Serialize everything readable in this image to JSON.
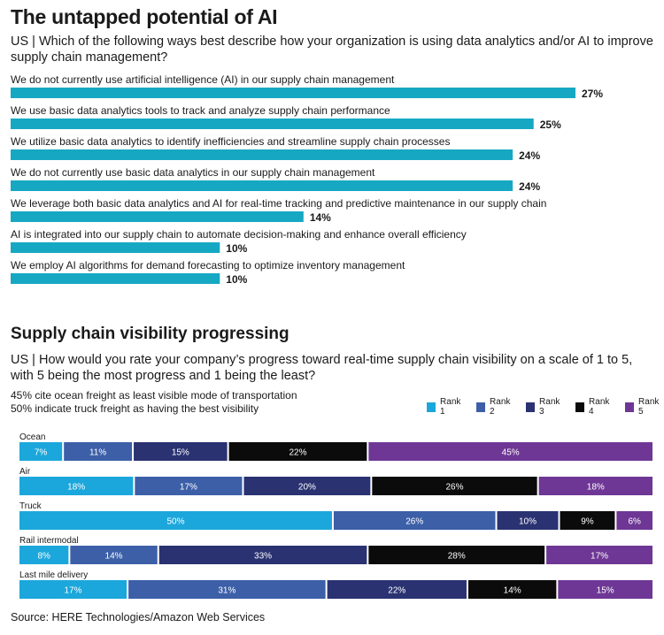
{
  "section1": {
    "title": "The untapped potential of AI",
    "question": "US | Which of the following ways best describe how your organization is using data analytics and/or AI to improve supply chain management?"
  },
  "section2": {
    "title": "Supply chain visibility progressing",
    "question": "US | How would you rate your company’s progress toward real-time supply chain visibility on a scale of 1 to 5, with 5 being the most progress and 1 being the least?",
    "note1": "45% cite ocean freight as least visible mode of transportation",
    "note2": "50% indicate truck freight as having the best visibility"
  },
  "source": "Source: HERE Technologies/Amazon Web Services",
  "colors": {
    "bar": "#16a8c3",
    "ranks": [
      "#1ba7db",
      "#3c5fa8",
      "#2a3272",
      "#0b0b0b",
      "#6e3795"
    ]
  },
  "chart_data": [
    {
      "type": "bar",
      "orientation": "horizontal",
      "title": "The untapped potential of AI",
      "categories": [
        "We do not currently use artificial intelligence (AI) in our supply chain management",
        "We use basic data analytics tools to track and analyze supply chain performance",
        "We utilize basic data analytics to identify inefficiencies and streamline supply chain processes",
        "We do not currently use basic data analytics in our supply chain management",
        "We leverage both basic data analytics and AI for real-time tracking and predictive maintenance in our supply chain",
        "AI is integrated into our supply chain to automate decision-making and enhance overall efficiency",
        "We employ AI algorithms for demand forecasting to optimize inventory management"
      ],
      "values": [
        27,
        25,
        24,
        24,
        14,
        10,
        10
      ],
      "value_labels": [
        "27%",
        "25%",
        "24%",
        "24%",
        "14%",
        "10%",
        "10%"
      ],
      "unit": "%",
      "xlim": [
        0,
        27
      ]
    },
    {
      "type": "bar",
      "orientation": "horizontal",
      "stacked": true,
      "title": "Supply chain visibility progressing",
      "categories": [
        "Ocean",
        "Air",
        "Truck",
        "Rail intermodal",
        "Last mile delivery"
      ],
      "series": [
        {
          "name": "Rank 1",
          "values": [
            7,
            18,
            50,
            8,
            17
          ]
        },
        {
          "name": "Rank 2",
          "values": [
            11,
            17,
            26,
            14,
            31
          ]
        },
        {
          "name": "Rank 3",
          "values": [
            15,
            20,
            10,
            33,
            22
          ]
        },
        {
          "name": "Rank 4",
          "values": [
            22,
            26,
            9,
            28,
            14
          ]
        },
        {
          "name": "Rank 5",
          "values": [
            45,
            18,
            6,
            17,
            15
          ]
        }
      ],
      "unit": "%",
      "legend": "top-right"
    }
  ]
}
